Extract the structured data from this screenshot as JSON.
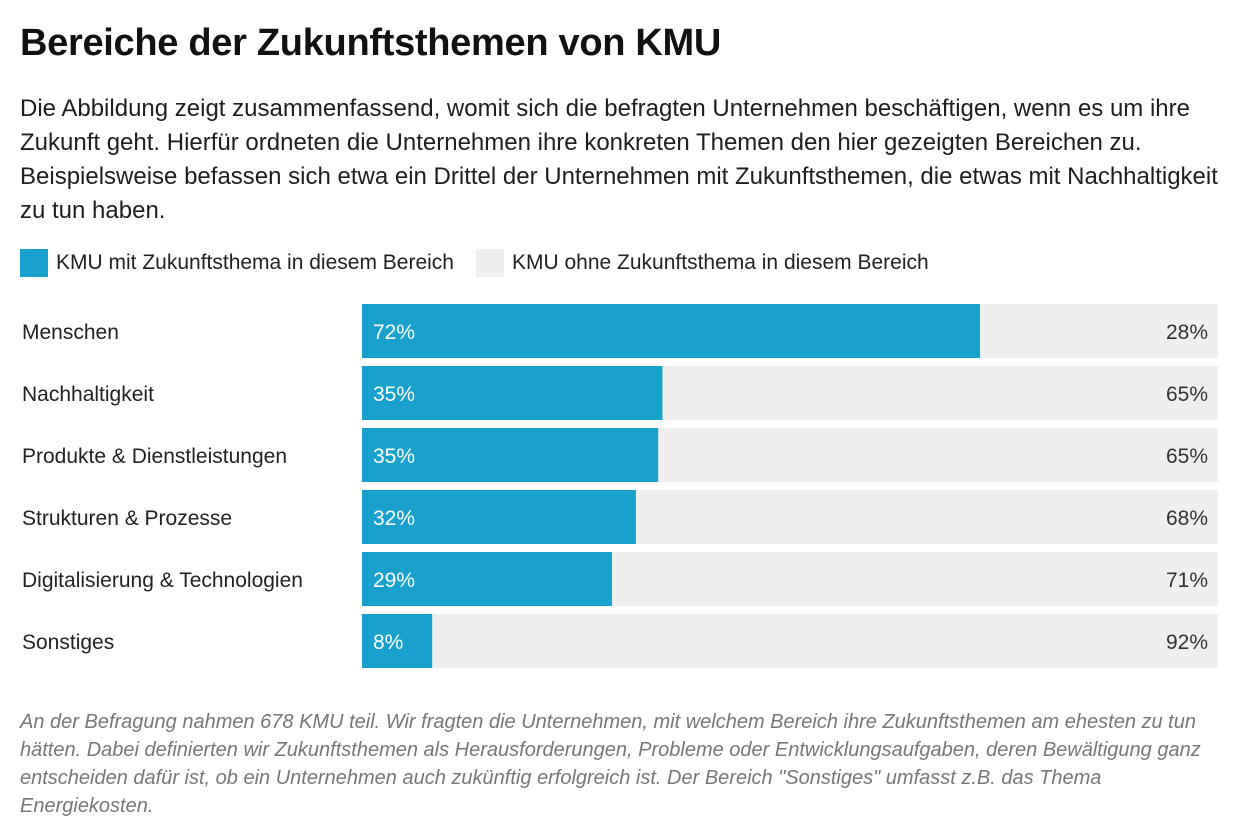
{
  "title": "Bereiche der Zukunftsthemen von KMU",
  "subtitle": "Die Abbildung zeigt zusammenfassend, womit sich die befragten Unternehmen beschäftigen, wenn es um ihre Zukunft geht. Hierfür ordneten die Unternehmen ihre konkreten Themen den hier gezeigten Bereichen zu. Beispielsweise befassen sich etwa ein Drittel der Unternehmen mit Zukunftsthemen, die etwas mit Nachhaltigkeit zu tun haben.",
  "note": "An der Befragung nahmen 678 KMU teil. Wir fragten die Unternehmen, mit welchem Bereich ihre Zukunftsthemen am ehesten zu tun hätten. Dabei definierten wir Zukunftsthemen als Herausforderungen, Probleme oder Entwicklungsaufgaben, deren Bewältigung ganz entscheiden dafür ist, ob ein Unternehmen auch zukünftig erfolgreich ist. Der Bereich \"Sonstiges\" umfasst z.B. das Thema Energiekosten.",
  "colors": {
    "with": "#18a1cd",
    "without": "#efefef"
  },
  "chart_data": {
    "type": "bar",
    "orientation": "horizontal",
    "stacked": true,
    "title": "Bereiche der Zukunftsthemen von KMU",
    "categories": [
      "Menschen",
      "Nachhaltigkeit",
      "Produkte & Dienstleistungen",
      "Strukturen & Prozesse",
      "Digitalisierung & Technologien",
      "Sonstiges"
    ],
    "series": [
      {
        "name": "KMU mit Zukunftsthema in diesem Bereich",
        "values": [
          72.2,
          35.1,
          34.6,
          32.0,
          29.2,
          8.2
        ],
        "labels": [
          "72%",
          "35%",
          "35%",
          "32%",
          "29%",
          "8%"
        ]
      },
      {
        "name": "KMU ohne Zukunftsthema in diesem Bereich",
        "values": [
          27.8,
          64.9,
          65.4,
          68.0,
          70.8,
          91.8
        ],
        "labels": [
          "28%",
          "65%",
          "65%",
          "68%",
          "71%",
          "92%"
        ]
      }
    ],
    "xlim": [
      0,
      100
    ],
    "legend_position": "top-left",
    "grid": false
  }
}
